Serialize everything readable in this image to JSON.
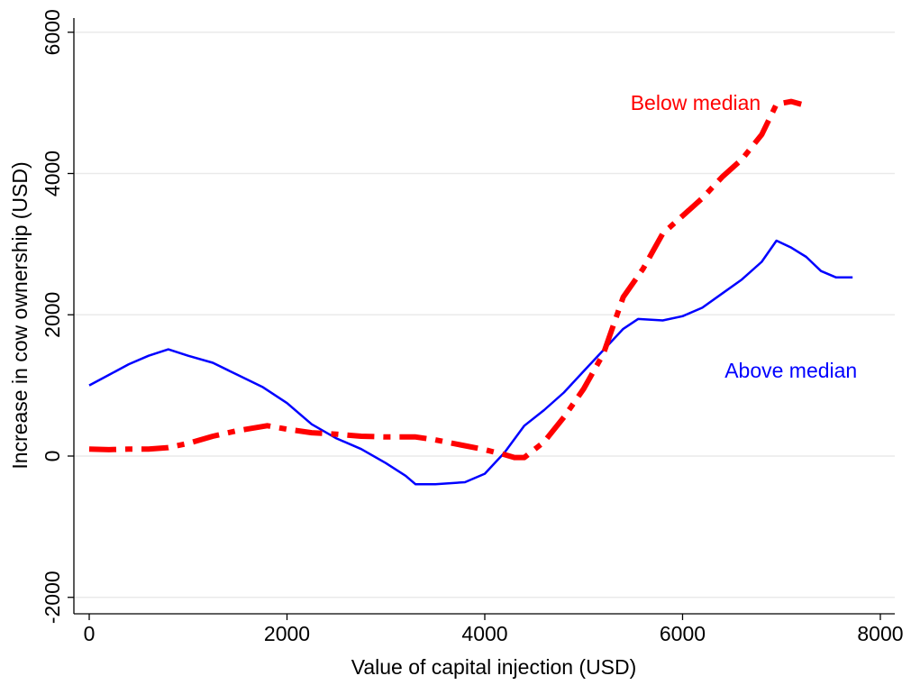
{
  "chart_data": {
    "type": "line",
    "xlabel": "Value of capital injection (USD)",
    "ylabel": "Increase in cow ownership (USD)",
    "xlim": [
      -155,
      8146
    ],
    "ylim": [
      -2233,
      6201
    ],
    "xticks": [
      0,
      2000,
      4000,
      6000,
      8000
    ],
    "yticks": [
      -2000,
      0,
      2000,
      4000,
      6000
    ],
    "grid": true,
    "series": [
      {
        "name": "Above median",
        "color": "#0000ff",
        "dashed": false,
        "x": [
          0,
          200,
          400,
          600,
          800,
          1000,
          1250,
          1500,
          1750,
          2000,
          2250,
          2500,
          2750,
          3000,
          3200,
          3300,
          3500,
          3800,
          4000,
          4200,
          4400,
          4600,
          4800,
          5000,
          5200,
          5400,
          5550,
          5800,
          6000,
          6200,
          6400,
          6600,
          6800,
          6950,
          7100,
          7250,
          7400,
          7550,
          7720
        ],
        "values": [
          1000,
          1150,
          1300,
          1420,
          1510,
          1420,
          1320,
          1150,
          980,
          750,
          450,
          250,
          100,
          -100,
          -280,
          -400,
          -400,
          -370,
          -250,
          50,
          430,
          650,
          900,
          1200,
          1500,
          1800,
          1940,
          1920,
          1980,
          2100,
          2300,
          2500,
          2750,
          3050,
          2950,
          2820,
          2620,
          2530,
          2530
        ]
      },
      {
        "name": "Below median",
        "color": "#ff0000",
        "dashed": true,
        "x": [
          0,
          200,
          400,
          600,
          800,
          1000,
          1250,
          1500,
          1800,
          2000,
          2250,
          2500,
          2750,
          3000,
          3300,
          3500,
          3750,
          4000,
          4200,
          4300,
          4400,
          4600,
          4800,
          5000,
          5200,
          5400,
          5600,
          5800,
          6000,
          6200,
          6400,
          6600,
          6800,
          6950,
          7100,
          7200
        ],
        "values": [
          100,
          90,
          100,
          100,
          120,
          180,
          280,
          360,
          430,
          380,
          330,
          310,
          280,
          270,
          270,
          230,
          160,
          90,
          20,
          -20,
          -20,
          200,
          550,
          950,
          1450,
          2250,
          2650,
          3150,
          3400,
          3650,
          3950,
          4200,
          4550,
          4980,
          5020,
          4980
        ]
      }
    ]
  }
}
